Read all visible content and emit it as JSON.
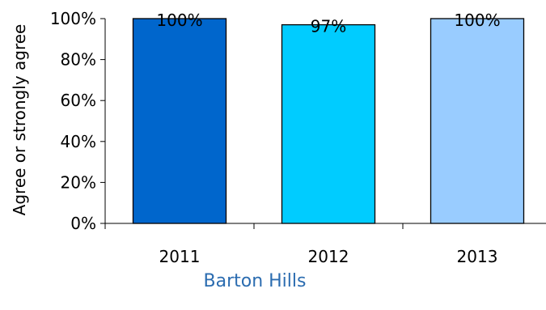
{
  "chart_data": {
    "type": "bar",
    "categories": [
      "2011",
      "2012",
      "2013"
    ],
    "values": [
      100,
      97,
      100
    ],
    "data_labels": [
      "100%",
      "97%",
      "100%"
    ],
    "colors": [
      "#0066cc",
      "#00ccff",
      "#99ccff"
    ],
    "ylabel": "Agree or strongly agree",
    "xlabel": "Barton Hills",
    "ylim": [
      0,
      100
    ],
    "yticks": [
      0,
      20,
      40,
      60,
      80,
      100
    ],
    "ytick_labels": [
      "0%",
      "20%",
      "40%",
      "60%",
      "80%",
      "100%"
    ],
    "grid": false,
    "legend": "none"
  }
}
